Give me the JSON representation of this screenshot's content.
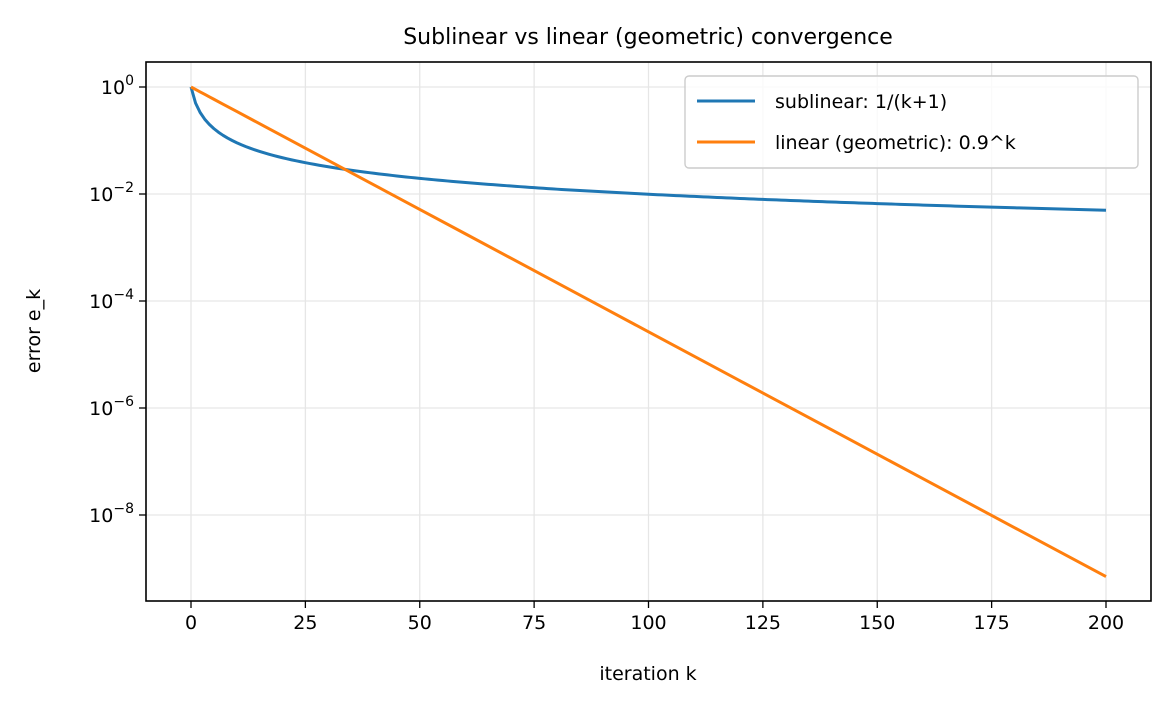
{
  "chart_data": {
    "type": "line",
    "title": "Sublinear vs linear (geometric) convergence",
    "xlabel": "iteration k",
    "ylabel": "error e_k",
    "xlim": [
      -10,
      210
    ],
    "ylim": [
      2.5e-10,
      3
    ],
    "yscale": "log",
    "grid": true,
    "legend_position": "top-right",
    "x_ticks": [
      0,
      25,
      50,
      75,
      100,
      125,
      150,
      175,
      200
    ],
    "x_tick_labels": [
      "0",
      "25",
      "50",
      "75",
      "100",
      "125",
      "150",
      "175",
      "200"
    ],
    "y_ticks": [
      1,
      0.01,
      0.0001,
      1e-06,
      1e-08
    ],
    "y_tick_labels": [
      "10^0",
      "10^−2",
      "10^−4",
      "10^−6",
      "10^−8"
    ],
    "x": [
      0,
      1,
      2,
      3,
      4,
      5,
      7,
      10,
      15,
      20,
      30,
      40,
      50,
      60,
      70,
      80,
      90,
      100,
      120,
      140,
      160,
      180,
      200
    ],
    "series": [
      {
        "name": "sublinear: 1/(k+1)",
        "color": "#1f77b4",
        "values": [
          1,
          0.5,
          0.3333,
          0.25,
          0.2,
          0.1667,
          0.125,
          0.0909,
          0.0625,
          0.0476,
          0.0323,
          0.0244,
          0.0196,
          0.0164,
          0.0141,
          0.0123,
          0.011,
          0.0099,
          0.00826,
          0.00709,
          0.00621,
          0.00552,
          0.00498
        ]
      },
      {
        "name": "linear (geometric): 0.9^k",
        "color": "#ff7f0e",
        "values": [
          1,
          0.9,
          0.81,
          0.729,
          0.6561,
          0.59049,
          0.4783,
          0.3487,
          0.2059,
          0.1216,
          0.04239,
          0.01478,
          0.005154,
          0.001797,
          0.0006266,
          0.0002185,
          7.618e-05,
          2.656e-05,
          3.229e-06,
          3.925e-07,
          4.772e-08,
          5.801e-09,
          7.055e-10
        ]
      }
    ]
  }
}
